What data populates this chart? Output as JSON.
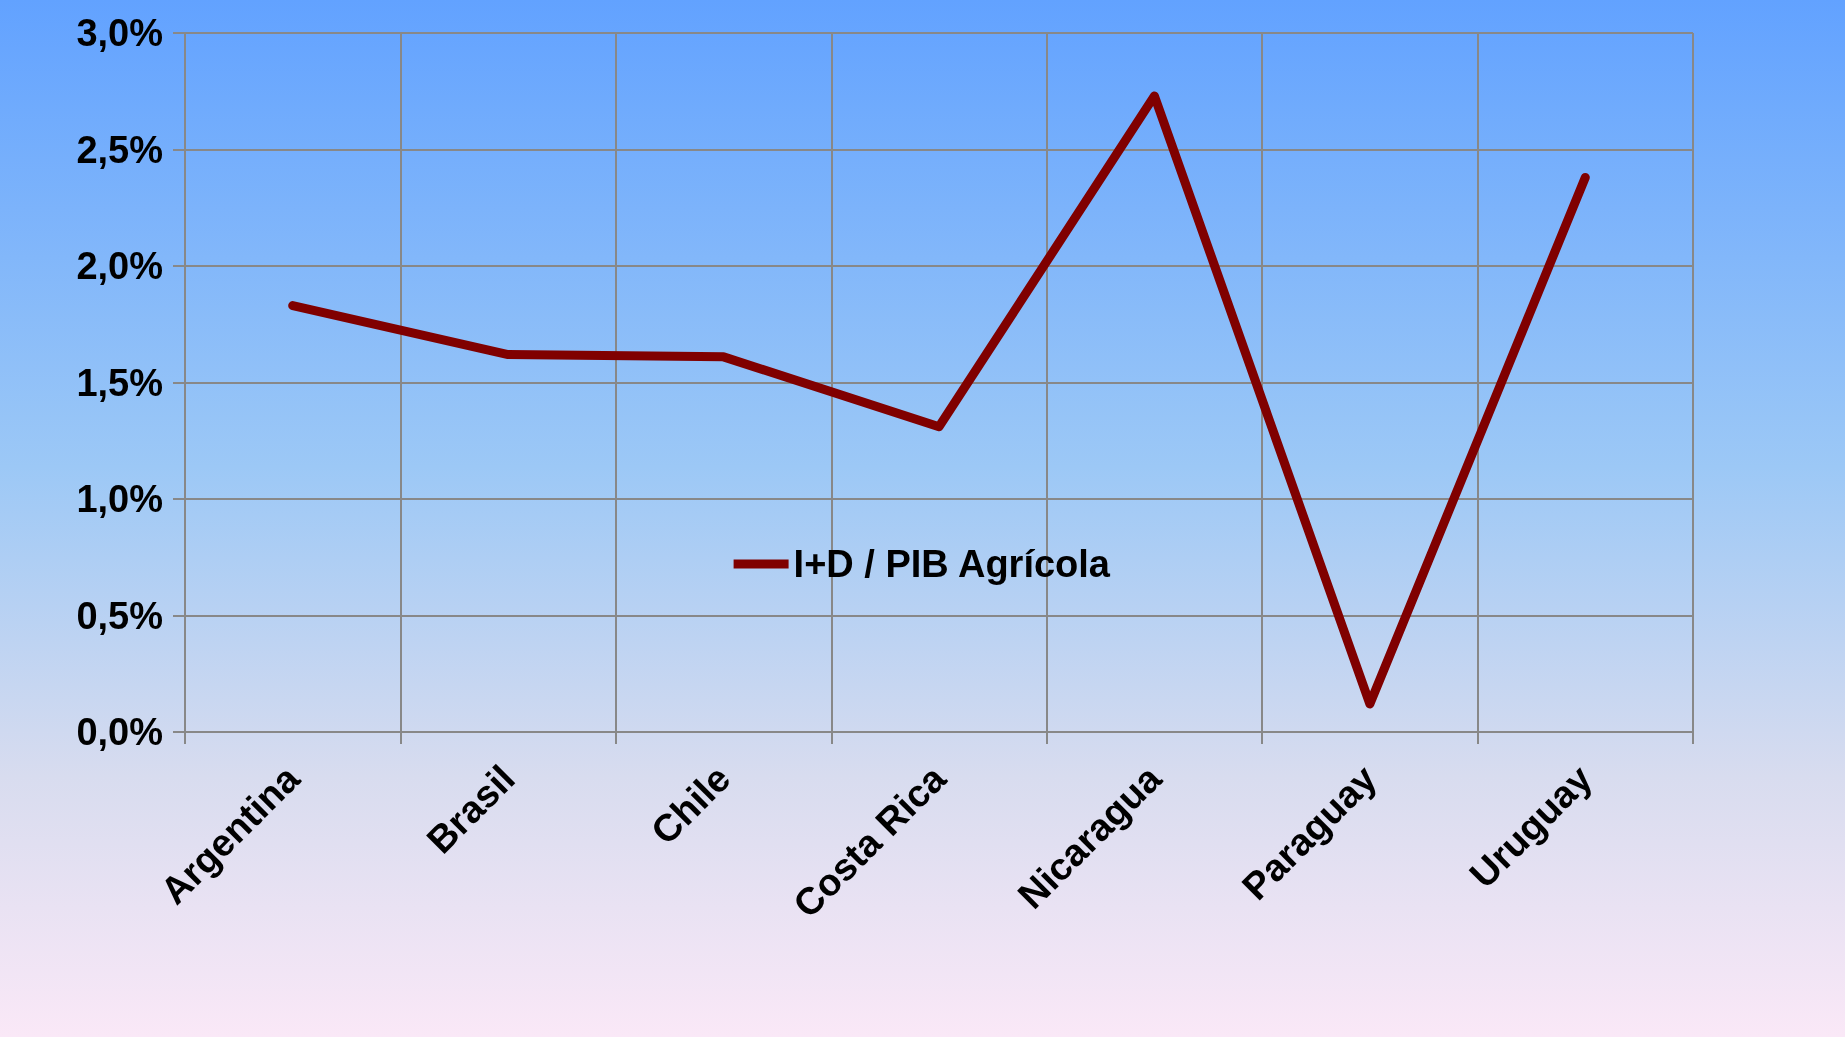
{
  "chart_data": {
    "type": "line",
    "categories": [
      "Argentina",
      "Brasil",
      "Chile",
      "Costa Rica",
      "Nicaragua",
      "Paraguay",
      "Uruguay"
    ],
    "series": [
      {
        "name": "I+D / PIB Agrícola",
        "color": "#800000",
        "values": [
          1.83,
          1.62,
          1.61,
          1.31,
          2.73,
          0.12,
          2.38
        ]
      }
    ],
    "ylim": [
      0,
      3
    ],
    "yticks": [
      {
        "value": 0,
        "label": "0,0%"
      },
      {
        "value": 0.5,
        "label": "0,5%"
      },
      {
        "value": 1,
        "label": "1,0%"
      },
      {
        "value": 1.5,
        "label": "1,5%"
      },
      {
        "value": 2,
        "label": "2,0%"
      },
      {
        "value": 2.5,
        "label": "2,5%"
      },
      {
        "value": 3,
        "label": "3,0%"
      }
    ],
    "grid": true,
    "legend": "center",
    "marker": "none",
    "line_style": "solid"
  }
}
